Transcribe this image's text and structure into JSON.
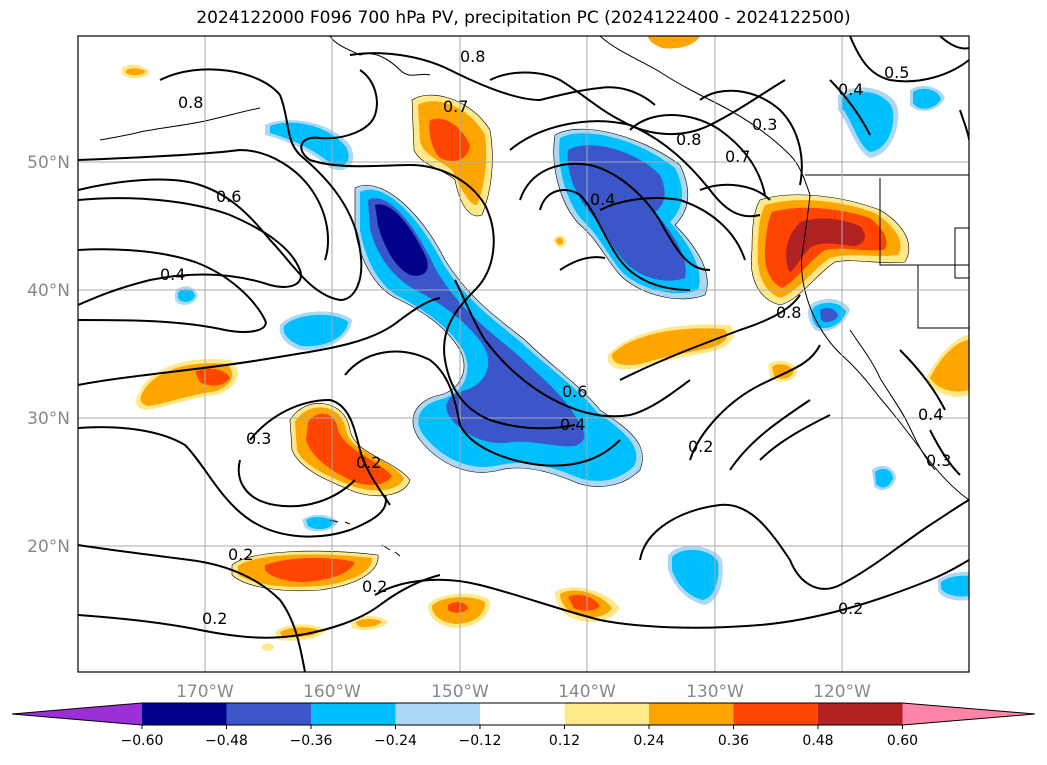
{
  "title": "2024122000 F096 700 hPa PV, precipitation PC (2024122400 - 2024122500)",
  "latitude_labels": [
    "50°N",
    "40°N",
    "30°N",
    "20°N"
  ],
  "longitude_labels": [
    "170°W",
    "160°W",
    "150°W",
    "140°W",
    "130°W",
    "120°W"
  ],
  "contour_labels": [
    "0.8",
    "0.8",
    "0.7",
    "0.8",
    "0.7",
    "0.3",
    "0.5",
    "0.4",
    "0.6",
    "0.4",
    "0.4",
    "0.8",
    "0.6",
    "0.4",
    "0.3",
    "0.2",
    "0.2",
    "0.2",
    "0.2",
    "0.2",
    "0.2",
    "0.4",
    "0.3"
  ],
  "colorbar": {
    "tick_labels": [
      "−0.60",
      "−0.48",
      "−0.36",
      "−0.24",
      "−0.12",
      "0.12",
      "0.24",
      "0.36",
      "0.48",
      "0.60"
    ],
    "colors": [
      "#9b30d9",
      "#00008b",
      "#3a56c8",
      "#00bfff",
      "#add8f5",
      "#ffffff",
      "#ffe98a",
      "#ffa500",
      "#ff4500",
      "#b22222",
      "#ff85a8"
    ]
  },
  "shading_colors": {
    "light_yellow": "#ffe98a",
    "orange": "#ffa500",
    "red_orange": "#ff4500",
    "dark_red": "#b22222",
    "light_blue": "#add8f5",
    "sky_blue": "#00bfff",
    "medium_blue": "#3a56c8",
    "navy": "#00008b"
  }
}
